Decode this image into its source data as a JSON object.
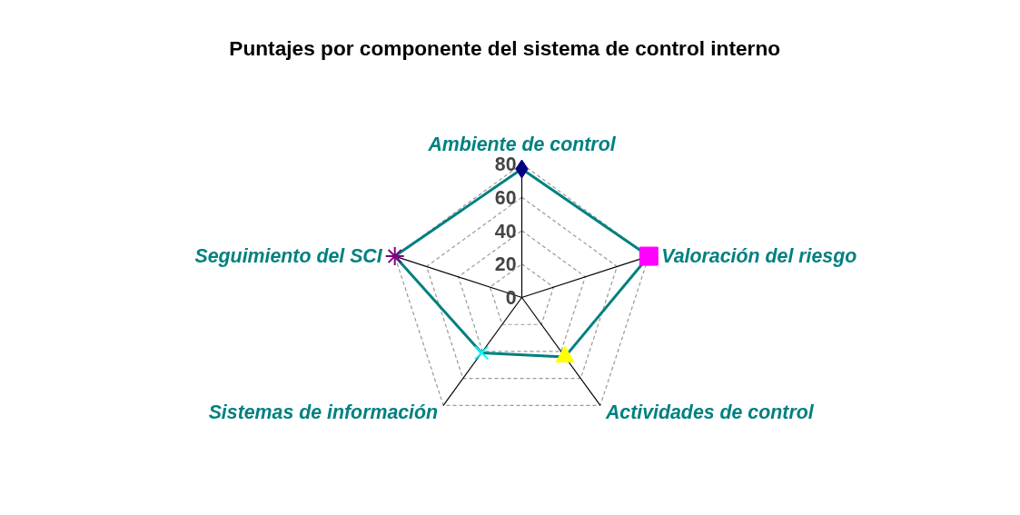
{
  "chart_data": {
    "type": "radar",
    "title": "Puntajes por componente  del sistema de control  interno",
    "categories": [
      "Ambiente de control",
      "Valoración del riesgo",
      "Actividades de control",
      "Sistemas de información",
      "Seguimiento del SCI"
    ],
    "series": [
      {
        "color": "#008080",
        "values": [
          77,
          80,
          44,
          41,
          80
        ],
        "colors": [
          "#000080",
          "#ff00ff",
          "#ffff00",
          "#00ffff",
          "#800080"
        ],
        "marker": [
          "diamond",
          "square",
          "triangle",
          "cross",
          "star"
        ]
      }
    ],
    "ylim": [
      0,
      80
    ],
    "yticks": [
      0,
      20,
      40,
      60,
      80
    ],
    "grid": true
  }
}
